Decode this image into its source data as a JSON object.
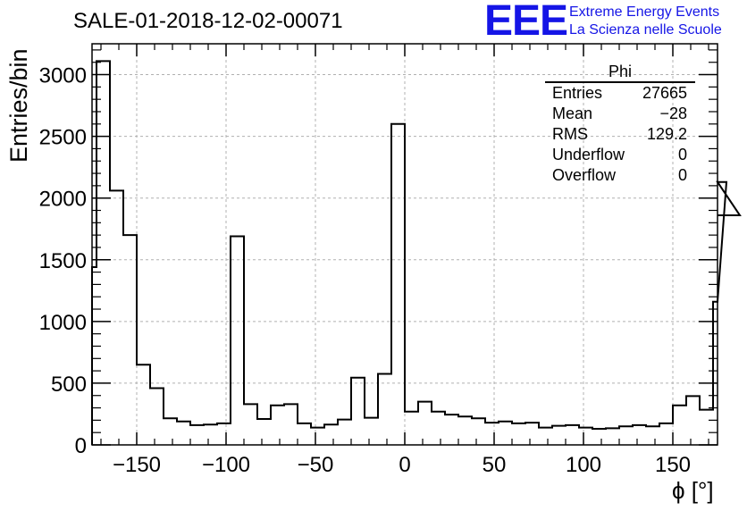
{
  "header": {
    "title": "SALE-01-2018-12-02-00071",
    "logo": "EEE",
    "logo_line1": "Extreme Energy Events",
    "logo_line2": "La Scienza nelle Scuole"
  },
  "stats": {
    "name": "Phi",
    "rows": [
      {
        "label": "Entries",
        "value": "27665"
      },
      {
        "label": "Mean",
        "value": "−28"
      },
      {
        "label": "RMS",
        "value": "129.2"
      },
      {
        "label": "Underflow",
        "value": "0"
      },
      {
        "label": "Overflow",
        "value": "0"
      }
    ]
  },
  "colors": {
    "logo": "#1515e6",
    "line": "#000000",
    "grid": "#b0b0b0"
  },
  "chart_data": {
    "type": "histogram",
    "xlabel": "ϕ [°]",
    "ylabel": "Entries/bin",
    "xlim": [
      -175,
      175
    ],
    "ylim": [
      0,
      3250
    ],
    "bin_width": 7.5,
    "grid": true,
    "legend": "top-right stats box",
    "x_ticks": [
      -150,
      -100,
      -50,
      0,
      50,
      100,
      150
    ],
    "x_tick_labels": [
      "−150",
      "−100",
      "−50",
      "0",
      "50",
      "100",
      "150"
    ],
    "y_ticks": [
      0,
      500,
      1000,
      1500,
      2000,
      2500,
      3000
    ],
    "y_tick_labels": [
      "0",
      "500",
      "1000",
      "1500",
      "2000",
      "2500",
      "3000"
    ],
    "bin_edges_start": -180,
    "values": [
      1440,
      3110,
      2060,
      1700,
      650,
      460,
      215,
      190,
      160,
      165,
      175,
      1690,
      330,
      210,
      320,
      330,
      175,
      140,
      165,
      205,
      545,
      220,
      575,
      2600,
      270,
      350,
      270,
      245,
      230,
      215,
      180,
      190,
      175,
      180,
      140,
      155,
      160,
      140,
      130,
      135,
      150,
      160,
      150,
      175,
      320,
      395,
      285,
      1160,
      2130,
      1860
    ]
  }
}
